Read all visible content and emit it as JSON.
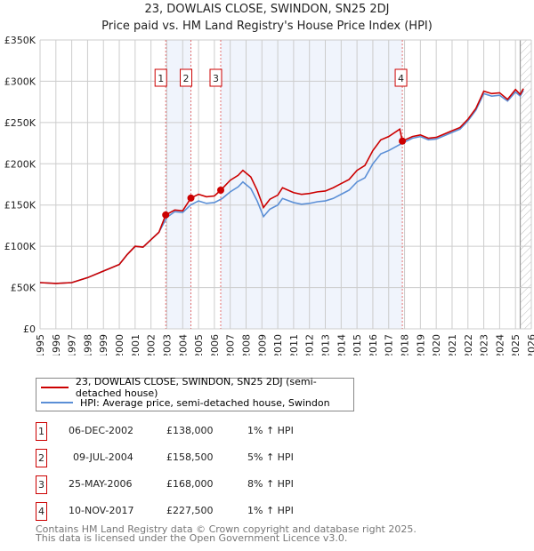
{
  "chart_data": {
    "type": "line",
    "title": "23, DOWLAIS CLOSE, SWINDON, SN25 2DJ",
    "subtitle": "Price paid vs. HM Land Registry's House Price Index (HPI)",
    "xlim": [
      1995,
      2026
    ],
    "ylim": [
      0,
      350000
    ],
    "y_ticks": [
      {
        "v": 0,
        "label": "£0"
      },
      {
        "v": 50000,
        "label": "£50K"
      },
      {
        "v": 100000,
        "label": "£100K"
      },
      {
        "v": 150000,
        "label": "£150K"
      },
      {
        "v": 200000,
        "label": "£200K"
      },
      {
        "v": 250000,
        "label": "£250K"
      },
      {
        "v": 300000,
        "label": "£300K"
      },
      {
        "v": 350000,
        "label": "£350K"
      }
    ],
    "x_ticks": [
      "1995",
      "1996",
      "1997",
      "1998",
      "1999",
      "2000",
      "2001",
      "2002",
      "2003",
      "2004",
      "2005",
      "2006",
      "2007",
      "2008",
      "2009",
      "2010",
      "2011",
      "2012",
      "2013",
      "2014",
      "2015",
      "2016",
      "2017",
      "2018",
      "2019",
      "2020",
      "2021",
      "2022",
      "2023",
      "2024",
      "2025",
      "2026"
    ],
    "grid": true,
    "shaded_ranges": [
      [
        2002.93,
        2004.52
      ],
      [
        2006.4,
        2017.86
      ]
    ],
    "hatched_from": 2025.3,
    "series": [
      {
        "name": "23, DOWLAIS CLOSE, SWINDON, SN25 2DJ (semi-detached house)",
        "color": "#cc0000",
        "x": [
          1995,
          1996,
          1997,
          1998,
          1999,
          2000,
          2000.5,
          2001,
          2001.5,
          2002,
          2002.5,
          2002.93,
          2003.5,
          2004,
          2004.52,
          2005,
          2005.5,
          2006,
          2006.4,
          2007,
          2007.5,
          2007.8,
          2008.3,
          2008.7,
          2009.1,
          2009.5,
          2010,
          2010.3,
          2011,
          2011.5,
          2012,
          2012.5,
          2013,
          2013.5,
          2014,
          2014.5,
          2015,
          2015.5,
          2016,
          2016.5,
          2017,
          2017.7,
          2017.86,
          2018.5,
          2019,
          2019.5,
          2020,
          2020.5,
          2021,
          2021.5,
          2022,
          2022.5,
          2023,
          2023.5,
          2024,
          2024.5,
          2025,
          2025.3,
          2025.5
        ],
        "y": [
          56000,
          55000,
          56000,
          62000,
          70000,
          78000,
          90000,
          100000,
          99000,
          108000,
          117000,
          138000,
          144000,
          143000,
          158500,
          163000,
          160000,
          161000,
          168000,
          180000,
          186000,
          192000,
          184000,
          168000,
          147000,
          157000,
          162000,
          171000,
          165000,
          163000,
          164000,
          166000,
          167000,
          171000,
          176000,
          181000,
          192000,
          198000,
          216000,
          229000,
          233000,
          242000,
          227500,
          233000,
          235000,
          231000,
          232000,
          236000,
          240000,
          244000,
          254000,
          267000,
          288000,
          285000,
          286000,
          278000,
          290000,
          284000,
          291000
        ]
      },
      {
        "name": "HPI: Average price, semi-detached house, Swindon",
        "color": "#5b8fd6",
        "x": [
          1995,
          1996,
          1997,
          1998,
          1999,
          2000,
          2000.5,
          2001,
          2001.5,
          2002,
          2002.5,
          2003,
          2003.5,
          2004,
          2004.5,
          2005,
          2005.5,
          2006,
          2006.5,
          2007,
          2007.5,
          2007.8,
          2008.3,
          2008.7,
          2009.1,
          2009.5,
          2010,
          2010.3,
          2011,
          2011.5,
          2012,
          2012.5,
          2013,
          2013.5,
          2014,
          2014.5,
          2015,
          2015.5,
          2016,
          2016.5,
          2017,
          2017.86,
          2018.5,
          2019,
          2019.5,
          2020,
          2020.5,
          2021,
          2021.5,
          2022,
          2022.5,
          2023,
          2023.5,
          2024,
          2024.5,
          2025,
          2025.3,
          2025.5
        ],
        "y": [
          56000,
          55000,
          56000,
          62000,
          70000,
          78000,
          90000,
          100000,
          99000,
          108000,
          117000,
          135000,
          142000,
          141000,
          150000,
          155000,
          152000,
          153000,
          158000,
          166000,
          172000,
          178000,
          170000,
          155000,
          136000,
          145000,
          150000,
          158000,
          153000,
          151000,
          152000,
          154000,
          155000,
          158000,
          163000,
          168000,
          178000,
          183000,
          200000,
          212000,
          216000,
          225000,
          231000,
          233000,
          229000,
          230000,
          234000,
          238000,
          242000,
          252000,
          265000,
          285000,
          282000,
          283000,
          276000,
          287000,
          282000,
          289000
        ]
      }
    ],
    "sales": [
      {
        "n": "1",
        "x": 2002.93,
        "date": "06-DEC-2002",
        "price": 138000,
        "price_label": "£138,000",
        "hpi": "1% ↑ HPI"
      },
      {
        "n": "2",
        "x": 2004.52,
        "date": "09-JUL-2004",
        "price": 158500,
        "price_label": "£158,500",
        "hpi": "5% ↑ HPI"
      },
      {
        "n": "3",
        "x": 2006.4,
        "date": "25-MAY-2006",
        "price": 168000,
        "price_label": "£168,000",
        "hpi": "8% ↑ HPI"
      },
      {
        "n": "4",
        "x": 2017.86,
        "date": "10-NOV-2017",
        "price": 227500,
        "price_label": "£227,500",
        "hpi": "1% ↑ HPI"
      }
    ],
    "legend_placement": "below"
  },
  "footer": {
    "line1": "Contains HM Land Registry data © Crown copyright and database right 2025.",
    "line2": "This data is licensed under the Open Government Licence v3.0."
  }
}
